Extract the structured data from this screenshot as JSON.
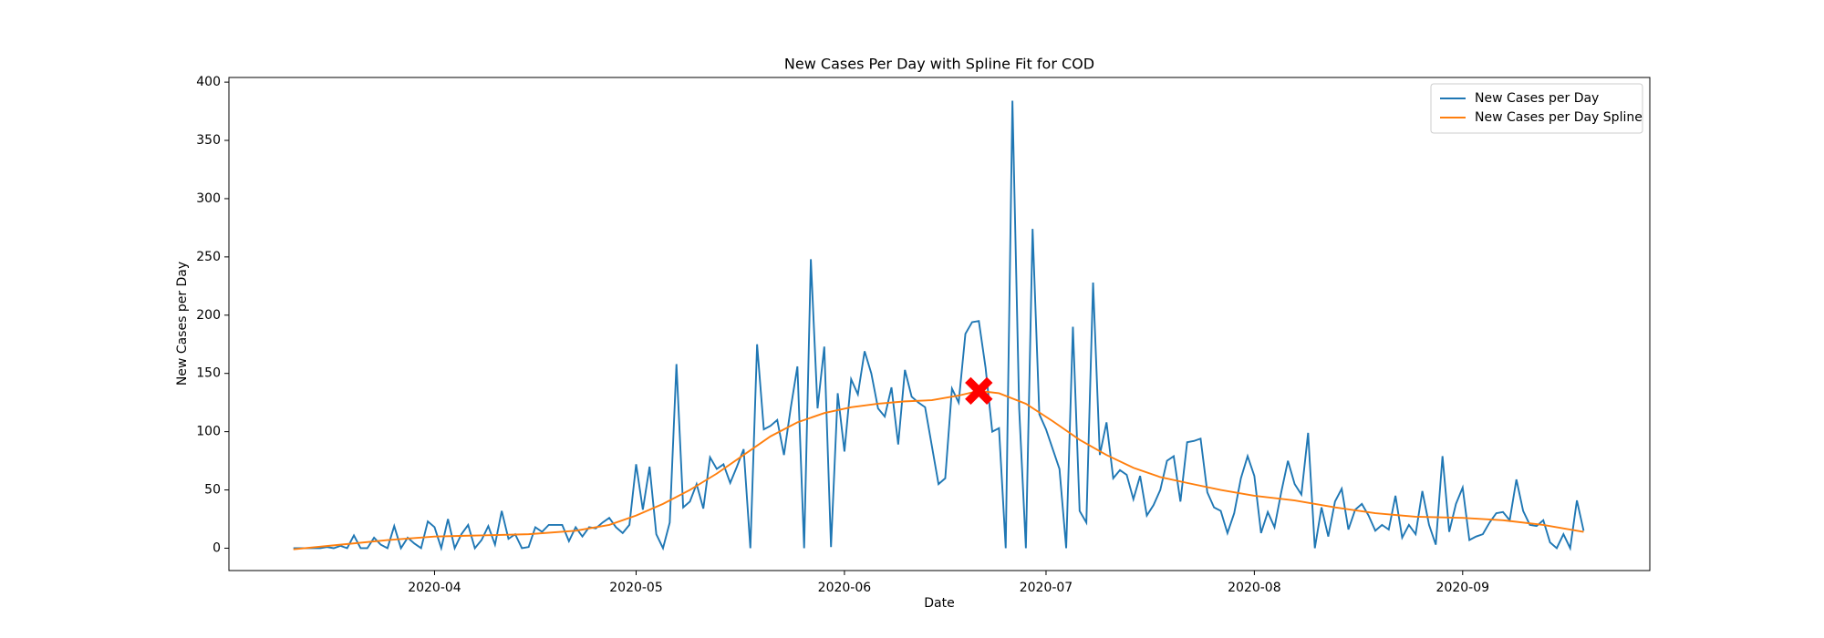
{
  "chart_data": {
    "type": "line",
    "title": "New Cases Per Day with Spline Fit for COD",
    "xlabel": "Date",
    "ylabel": "New Cases per Day",
    "xlim": [
      18322.4,
      18533.85
    ],
    "ylim": [
      -19.2,
      404
    ],
    "xticks": [
      {
        "value": 18353,
        "label": "2020-04"
      },
      {
        "value": 18383,
        "label": "2020-05"
      },
      {
        "value": 18414,
        "label": "2020-06"
      },
      {
        "value": 18444,
        "label": "2020-07"
      },
      {
        "value": 18475,
        "label": "2020-08"
      },
      {
        "value": 18506,
        "label": "2020-09"
      }
    ],
    "yticks": [
      0,
      50,
      100,
      150,
      200,
      250,
      300,
      350,
      400
    ],
    "legend": "upper right",
    "x": [
      18332,
      18333,
      18334,
      18335,
      18336,
      18337,
      18338,
      18339,
      18340,
      18341,
      18342,
      18343,
      18344,
      18345,
      18346,
      18347,
      18348,
      18349,
      18350,
      18351,
      18352,
      18353,
      18354,
      18355,
      18356,
      18357,
      18358,
      18359,
      18360,
      18361,
      18362,
      18363,
      18364,
      18365,
      18366,
      18367,
      18368,
      18369,
      18370,
      18371,
      18372,
      18373,
      18374,
      18375,
      18376,
      18377,
      18378,
      18379,
      18380,
      18381,
      18382,
      18383,
      18384,
      18385,
      18386,
      18387,
      18388,
      18389,
      18390,
      18391,
      18392,
      18393,
      18394,
      18395,
      18396,
      18397,
      18398,
      18399,
      18400,
      18401,
      18402,
      18403,
      18404,
      18405,
      18406,
      18407,
      18408,
      18409,
      18410,
      18411,
      18412,
      18413,
      18414,
      18415,
      18416,
      18417,
      18418,
      18419,
      18420,
      18421,
      18422,
      18423,
      18424,
      18425,
      18426,
      18427,
      18428,
      18429,
      18430,
      18431,
      18432,
      18433,
      18434,
      18435,
      18436,
      18437,
      18438,
      18439,
      18440,
      18441,
      18442,
      18443,
      18444,
      18445,
      18446,
      18447,
      18448,
      18449,
      18450,
      18451,
      18452,
      18453,
      18454,
      18455,
      18456,
      18457,
      18458,
      18459,
      18460,
      18461,
      18462,
      18463,
      18464,
      18465,
      18466,
      18467,
      18468,
      18469,
      18470,
      18471,
      18472,
      18473,
      18474,
      18475,
      18476,
      18477,
      18478,
      18479,
      18480,
      18481,
      18482,
      18483,
      18484,
      18485,
      18486,
      18487,
      18488,
      18489,
      18490,
      18491,
      18492,
      18493,
      18494,
      18495,
      18496,
      18497,
      18498,
      18499,
      18500,
      18501,
      18502,
      18503,
      18504,
      18505,
      18506,
      18507,
      18508,
      18509,
      18510,
      18511,
      18512,
      18513,
      18514,
      18515,
      18516,
      18517,
      18518,
      18519,
      18520,
      18521,
      18522,
      18523,
      18524
    ],
    "series": [
      {
        "name": "New Cases per Day",
        "color": "#1f77b4",
        "values": [
          0,
          0,
          0,
          0,
          0,
          1,
          0,
          2,
          0,
          11,
          0,
          0,
          9,
          3,
          0,
          19,
          0,
          9,
          4,
          0,
          23,
          18,
          0,
          25,
          0,
          12,
          20,
          0,
          7,
          19,
          3,
          32,
          8,
          12,
          0,
          1,
          18,
          14,
          20,
          20,
          20,
          6,
          18,
          10,
          18,
          17,
          22,
          26,
          18,
          13,
          20,
          72,
          33,
          70,
          12,
          0,
          22,
          158,
          35,
          40,
          55,
          34,
          78,
          68,
          72,
          56,
          70,
          85,
          0,
          175,
          102,
          105,
          110,
          80,
          120,
          156,
          0,
          248,
          120,
          173,
          1,
          133,
          83,
          145,
          132,
          169,
          150,
          120,
          113,
          138,
          89,
          153,
          130,
          125,
          121,
          88,
          55,
          60,
          137,
          125,
          184,
          194,
          195,
          155,
          100,
          103,
          0,
          384,
          120,
          0,
          274,
          115,
          102,
          85,
          68,
          0,
          190,
          32,
          22,
          228,
          80,
          108,
          60,
          67,
          63,
          42,
          62,
          28,
          37,
          50,
          75,
          79,
          40,
          91,
          92,
          94,
          48,
          35,
          32,
          13,
          30,
          60,
          79,
          62,
          13,
          31,
          18,
          48,
          75,
          55,
          46,
          99,
          0,
          35,
          10,
          40,
          51,
          16,
          33,
          38,
          28,
          15,
          20,
          16,
          45,
          9,
          20,
          12,
          49,
          20,
          3,
          79,
          14,
          38,
          52,
          7,
          10,
          12,
          22,
          30,
          31,
          24,
          59,
          32,
          20,
          19,
          24,
          5,
          0,
          12,
          0,
          41,
          15
        ]
      },
      {
        "name": "New Cases per Day Spline",
        "color": "#ff7f0e",
        "x": [
          18332,
          18339,
          18346,
          18353,
          18360,
          18367,
          18374,
          18379,
          18383,
          18387,
          18391,
          18395,
          18399,
          18403,
          18407,
          18411,
          18415,
          18419,
          18423,
          18427,
          18431,
          18434,
          18437,
          18441,
          18445,
          18449,
          18453,
          18457,
          18461,
          18465,
          18470,
          18475,
          18481,
          18487,
          18493,
          18499,
          18506,
          18512,
          18518,
          18524
        ],
        "values": [
          -1,
          3,
          7,
          10,
          11,
          12,
          15,
          20,
          28,
          38,
          50,
          64,
          80,
          96,
          108,
          116,
          121,
          124,
          126,
          127,
          131,
          135,
          133,
          124,
          109,
          93,
          80,
          69,
          61,
          56,
          50,
          45,
          41,
          35,
          30,
          27,
          26,
          24,
          20,
          14
        ]
      }
    ],
    "peak": {
      "x": 18434,
      "y": 135,
      "color": "#ff0000"
    }
  }
}
